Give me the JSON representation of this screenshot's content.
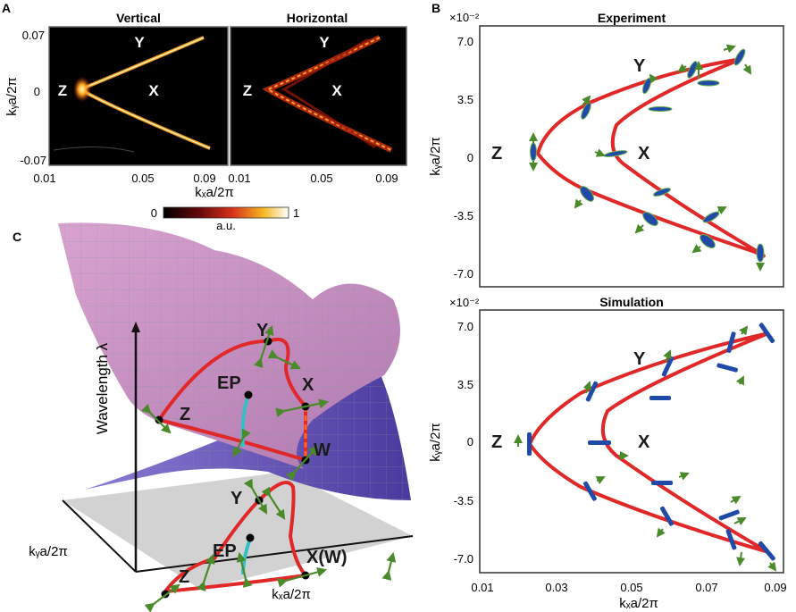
{
  "panel_a": {
    "letter": "A",
    "titles": [
      "Vertical",
      "Horizontal"
    ],
    "y_ticks": [
      "0.07",
      "0",
      "-0.07"
    ],
    "x_ticks_left": [
      "0.01",
      "0.05",
      "0.09"
    ],
    "x_ticks_right": [
      "0.01",
      "0.05",
      "0.09"
    ],
    "x_label": "kₓa/2π",
    "y_label": "kᵧa/2π",
    "points": [
      "Y",
      "Z",
      "X"
    ],
    "colorbar": {
      "min": "0",
      "max": "1",
      "unit": "a.u."
    }
  },
  "panel_b": {
    "letter": "B",
    "exponent": "×10⁻²",
    "top_title": "Experiment",
    "bottom_title": "Simulation",
    "y_ticks": [
      "7.0",
      "3.5",
      "0",
      "-3.5",
      "-7.0"
    ],
    "x_ticks": [
      "0.01",
      "0.03",
      "0.05",
      "0.07",
      "0.09"
    ],
    "x_label": "kₓa/2π",
    "y_label": "kᵧa/2π",
    "points": [
      "Y",
      "Z",
      "X"
    ]
  },
  "panel_c": {
    "letter": "C",
    "z_label": "Wavelength λ",
    "y_label": "kᵧa/2π",
    "x_label": "kₓa/2π",
    "points_upper": [
      "Y",
      "EP",
      "X",
      "Z",
      "W"
    ],
    "points_lower": [
      "Y",
      "EP",
      "X(W)",
      "Z"
    ]
  },
  "colors": {
    "curve": "#e02828",
    "arrow": "#4a8a2a",
    "ellipse": "#1f4aa8",
    "ep_branch": "#35bfc4",
    "upper_surface": "#c98ac2",
    "lower_surface": "#6b56b5",
    "plane": "#d2d2d2"
  }
}
